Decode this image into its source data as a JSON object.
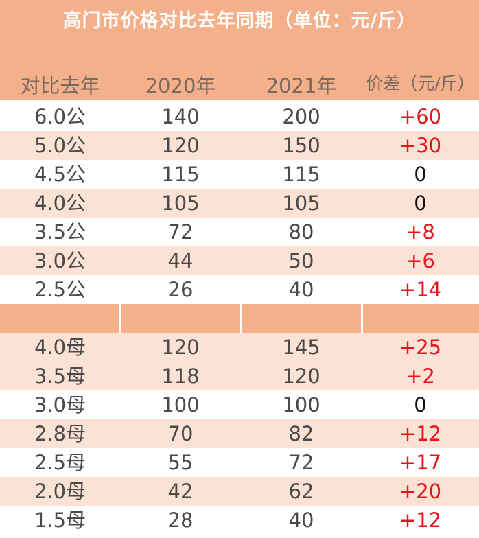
{
  "title": "高门市价格对比去年同期（单位：元/斤）",
  "headers": [
    "对比去年",
    "2020年",
    "2021年",
    "价差（元/斤）"
  ],
  "rows": [
    {
      "spec": "6.0公",
      "y2020": "140",
      "y2021": "200",
      "diff": "+60"
    },
    {
      "spec": "5.0公",
      "y2020": "120",
      "y2021": "150",
      "diff": "+30"
    },
    {
      "spec": "4.5公",
      "y2020": "115",
      "y2021": "115",
      "diff": "0"
    },
    {
      "spec": "4.0公",
      "y2020": "105",
      "y2021": "105",
      "diff": "0"
    },
    {
      "spec": "3.5公",
      "y2020": "72",
      "y2021": "80",
      "diff": "+8"
    },
    {
      "spec": "3.0公",
      "y2020": "44",
      "y2021": "50",
      "diff": "+6"
    },
    {
      "spec": "2.5公",
      "y2020": "26",
      "y2021": "40",
      "diff": "+14"
    },
    {
      "spec": "",
      "y2020": "",
      "y2021": "",
      "diff": ""
    },
    {
      "spec": "4.0母",
      "y2020": "120",
      "y2021": "145",
      "diff": "+25"
    },
    {
      "spec": "3.5母",
      "y2020": "118",
      "y2021": "120",
      "diff": "+2"
    },
    {
      "spec": "3.0母",
      "y2020": "100",
      "y2021": "100",
      "diff": "0"
    },
    {
      "spec": "2.8母",
      "y2020": "70",
      "y2021": "82",
      "diff": "+12"
    },
    {
      "spec": "2.5母",
      "y2020": "55",
      "y2021": "72",
      "diff": "+17"
    },
    {
      "spec": "2.0母",
      "y2020": "42",
      "y2021": "62",
      "diff": "+20"
    },
    {
      "spec": "1.5母",
      "y2020": "28",
      "y2021": "40",
      "diff": "+12"
    }
  ],
  "colors": {
    "header_band": "#f4b08a",
    "row_alt": "#fbe2d4",
    "positive_diff": "#e8141c"
  }
}
